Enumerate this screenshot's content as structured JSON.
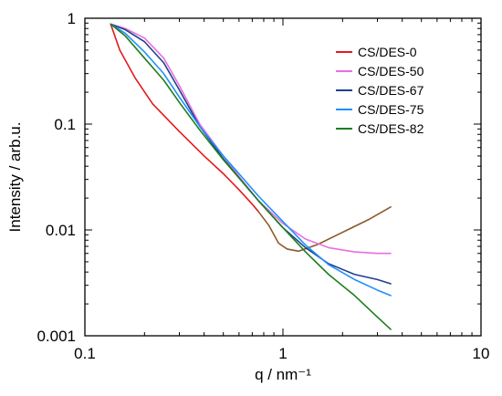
{
  "chart_data": {
    "type": "line",
    "xlabel": "q / nm⁻¹",
    "ylabel": "Intensity / arb.u.",
    "x_scale": "log",
    "y_scale": "log",
    "xlim": [
      0.1,
      10
    ],
    "ylim": [
      0.001,
      1
    ],
    "x_ticks": [
      {
        "value": 0.1,
        "label": "0.1"
      },
      {
        "value": 1,
        "label": "1"
      },
      {
        "value": 10,
        "label": "10"
      }
    ],
    "y_ticks": [
      {
        "value": 0.001,
        "label": "0.001"
      },
      {
        "value": 0.01,
        "label": "0.01"
      },
      {
        "value": 0.1,
        "label": "0.1"
      },
      {
        "value": 1,
        "label": "1"
      }
    ],
    "grid": false,
    "legend_position": "top-right",
    "series": [
      {
        "name": "CS/DES-0",
        "color": "#e41a1c",
        "segments": [
          {
            "color": "#e41a1c",
            "points": [
              [
                0.135,
                0.88
              ],
              [
                0.15,
                0.5
              ],
              [
                0.18,
                0.27
              ],
              [
                0.22,
                0.155
              ],
              [
                0.3,
                0.085
              ],
              [
                0.4,
                0.05
              ],
              [
                0.5,
                0.034
              ],
              [
                0.6,
                0.024
              ],
              [
                0.7,
                0.0175
              ],
              [
                0.75,
                0.015
              ]
            ]
          },
          {
            "color": "#8b5a2b",
            "points": [
              [
                0.75,
                0.015
              ],
              [
                0.85,
                0.011
              ],
              [
                0.95,
                0.0075
              ],
              [
                1.05,
                0.0066
              ],
              [
                1.2,
                0.0063
              ],
              [
                1.5,
                0.0073
              ],
              [
                2.0,
                0.0095
              ],
              [
                2.7,
                0.0125
              ],
              [
                3.5,
                0.0165
              ]
            ]
          }
        ]
      },
      {
        "name": "CS/DES-50",
        "color": "#e86fe0",
        "segments": [
          {
            "color": "#e86fe0",
            "points": [
              [
                0.135,
                0.88
              ],
              [
                0.16,
                0.8
              ],
              [
                0.2,
                0.65
              ],
              [
                0.25,
                0.42
              ],
              [
                0.3,
                0.23
              ],
              [
                0.38,
                0.1
              ],
              [
                0.5,
                0.05
              ],
              [
                0.6,
                0.032
              ],
              [
                0.75,
                0.019
              ],
              [
                1.0,
                0.0115
              ],
              [
                1.3,
                0.0082
              ],
              [
                1.7,
                0.0068
              ],
              [
                2.3,
                0.0062
              ],
              [
                3.0,
                0.006
              ],
              [
                3.5,
                0.006
              ]
            ]
          }
        ]
      },
      {
        "name": "CS/DES-67",
        "color": "#1f3f8f",
        "segments": [
          {
            "color": "#1f3f8f",
            "points": [
              [
                0.135,
                0.88
              ],
              [
                0.16,
                0.78
              ],
              [
                0.2,
                0.6
              ],
              [
                0.25,
                0.38
              ],
              [
                0.3,
                0.21
              ],
              [
                0.38,
                0.095
              ],
              [
                0.5,
                0.047
              ],
              [
                0.6,
                0.031
              ],
              [
                0.75,
                0.019
              ],
              [
                1.0,
                0.0105
              ],
              [
                1.3,
                0.0068
              ],
              [
                1.7,
                0.0048
              ],
              [
                2.3,
                0.0038
              ],
              [
                3.0,
                0.0034
              ],
              [
                3.5,
                0.0031
              ]
            ]
          }
        ]
      },
      {
        "name": "CS/DES-75",
        "color": "#1e90ff",
        "segments": [
          {
            "color": "#1e90ff",
            "points": [
              [
                0.135,
                0.88
              ],
              [
                0.16,
                0.72
              ],
              [
                0.2,
                0.48
              ],
              [
                0.25,
                0.3
              ],
              [
                0.3,
                0.18
              ],
              [
                0.38,
                0.095
              ],
              [
                0.5,
                0.05
              ],
              [
                0.6,
                0.034
              ],
              [
                0.75,
                0.021
              ],
              [
                1.0,
                0.012
              ],
              [
                1.3,
                0.0072
              ],
              [
                1.7,
                0.0047
              ],
              [
                2.3,
                0.0034
              ],
              [
                3.0,
                0.0027
              ],
              [
                3.5,
                0.0024
              ]
            ]
          }
        ]
      },
      {
        "name": "CS/DES-82",
        "color": "#1e7d1e",
        "segments": [
          {
            "color": "#1e7d1e",
            "points": [
              [
                0.135,
                0.88
              ],
              [
                0.16,
                0.68
              ],
              [
                0.2,
                0.42
              ],
              [
                0.25,
                0.26
              ],
              [
                0.3,
                0.16
              ],
              [
                0.38,
                0.088
              ],
              [
                0.5,
                0.046
              ],
              [
                0.6,
                0.031
              ],
              [
                0.75,
                0.019
              ],
              [
                1.0,
                0.0105
              ],
              [
                1.3,
                0.0062
              ],
              [
                1.7,
                0.0038
              ],
              [
                2.3,
                0.0024
              ],
              [
                3.0,
                0.0015
              ],
              [
                3.5,
                0.00115
              ]
            ]
          }
        ]
      }
    ]
  }
}
